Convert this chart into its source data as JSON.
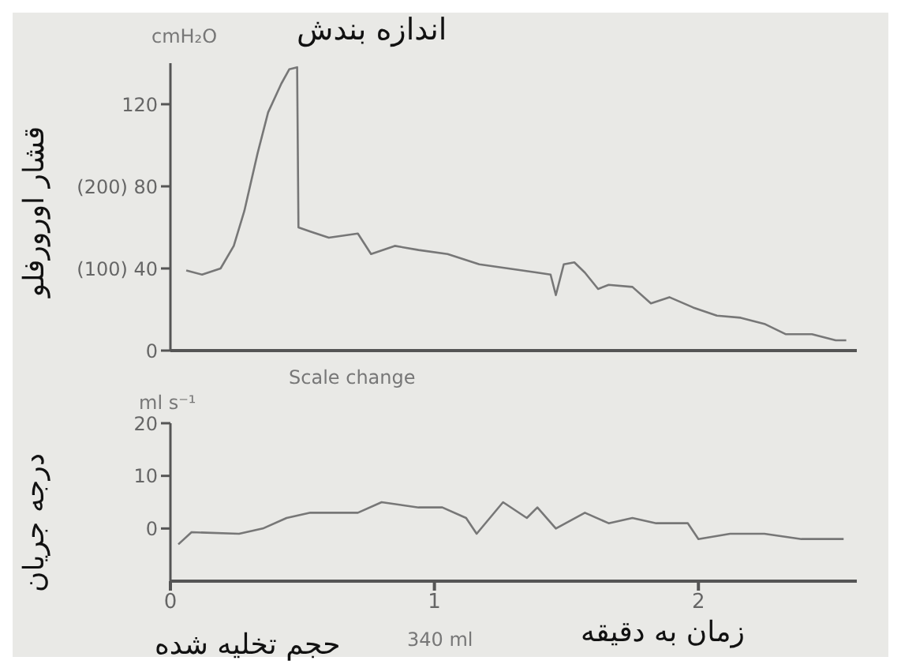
{
  "chart_data": [
    {
      "type": "line",
      "title": "اندازه بندش",
      "ylabel": "قشار اورورفلو",
      "annotations": [
        "cmH₂O",
        "Scale change"
      ],
      "xlim": [
        0,
        2.6
      ],
      "xticks": [
        0,
        1,
        2
      ],
      "ylim": [
        0,
        140
      ],
      "yticks": [
        0,
        {
          "value": 40,
          "label": "(100) 40"
        },
        {
          "value": 80,
          "label": "(200) 80"
        },
        120
      ],
      "tick_labels": "y",
      "marker": "none",
      "line_style": "solid",
      "series": [
        {
          "color": "#777777",
          "x": [
            0.06,
            0.12,
            0.19,
            0.24,
            0.28,
            0.33,
            0.37,
            0.42,
            0.45,
            0.48,
            0.485,
            0.53,
            0.6,
            0.71,
            0.76,
            0.85,
            0.94,
            1.05,
            1.17,
            1.28,
            1.39,
            1.44,
            1.46,
            1.49,
            1.53,
            1.57,
            1.62,
            1.66,
            1.75,
            1.82,
            1.89,
            1.98,
            2.07,
            2.16,
            2.25,
            2.33,
            2.43,
            2.52,
            2.56
          ],
          "values": [
            39,
            37,
            40,
            51,
            68,
            96,
            116,
            130,
            137,
            138,
            60,
            58,
            55,
            57,
            47,
            51,
            49,
            47,
            42,
            40,
            38,
            37,
            27,
            42,
            43,
            38,
            30,
            32,
            31,
            23,
            26,
            21,
            17,
            16,
            13,
            8,
            8,
            5,
            5
          ]
        }
      ]
    },
    {
      "type": "line",
      "ylabel": "درجه جریان",
      "xlabel": "زمان به دقیقه",
      "annotations": [
        "ml s⁻¹",
        "حجم تخلیه شده",
        "340 ml"
      ],
      "xlim": [
        0,
        2.6
      ],
      "xticks": [
        0,
        1,
        2
      ],
      "ylim": [
        -10,
        20
      ],
      "yticks": [
        0,
        10,
        20
      ],
      "marker": "none",
      "line_style": "solid",
      "series": [
        {
          "color": "#777777",
          "x": [
            0.03,
            0.08,
            0.26,
            0.35,
            0.44,
            0.53,
            0.71,
            0.8,
            0.94,
            1.03,
            1.12,
            1.16,
            1.26,
            1.35,
            1.39,
            1.46,
            1.57,
            1.66,
            1.75,
            1.84,
            1.96,
            2.0,
            2.12,
            2.25,
            2.39,
            2.55
          ],
          "values": [
            -3,
            -0.7,
            -1,
            0,
            2,
            3,
            3,
            5,
            4,
            4,
            2,
            -1,
            5,
            2,
            4,
            0,
            3,
            1,
            2,
            1,
            1,
            -2,
            -1,
            -1,
            -2,
            -2
          ]
        }
      ]
    }
  ]
}
